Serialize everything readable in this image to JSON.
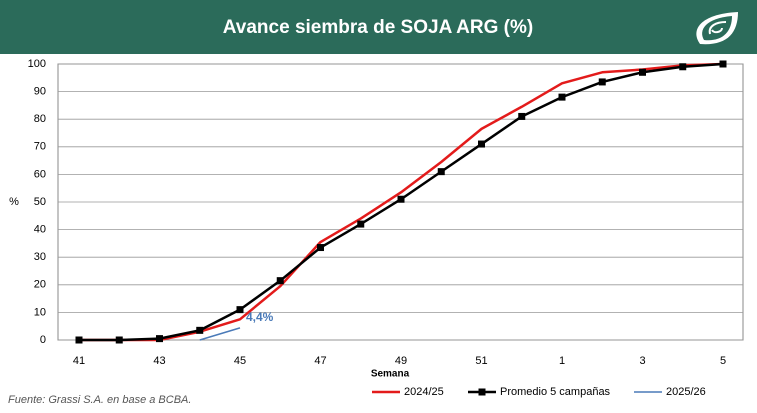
{
  "chart_data": {
    "type": "line",
    "title": "Avance siembra de SOJA ARG (%)",
    "x_label": "Semana",
    "y_label": "%",
    "source": "Fuente: Grassi S.A. en base a BCBA.",
    "categories": [
      "41",
      null,
      "43",
      null,
      "45",
      null,
      "47",
      null,
      "49",
      null,
      "51",
      null,
      "1",
      null,
      "3",
      null,
      "5"
    ],
    "series": [
      {
        "name": "2024/25",
        "color": "#e31b1b",
        "values": [
          0,
          0,
          0,
          3,
          7.5,
          19.5,
          35.5,
          44,
          53.5,
          64.5,
          76.5,
          84.5,
          93,
          97,
          98,
          99.5,
          100
        ]
      },
      {
        "name": "Promedio 5 campañas",
        "color": "#000000",
        "marker": "square",
        "values": [
          0,
          0,
          0.5,
          3.5,
          11,
          21.5,
          33.5,
          42,
          51,
          61,
          71,
          81,
          88,
          93.5,
          97,
          99,
          100
        ]
      },
      {
        "name": "2025/26",
        "color": "#4a7ab8",
        "values": [
          null,
          null,
          null,
          0,
          4.4,
          null,
          null,
          null,
          null,
          null,
          null,
          null,
          null,
          null,
          null,
          null,
          null
        ],
        "value_labels": [
          null,
          null,
          null,
          null,
          "4,4%",
          null,
          null,
          null,
          null,
          null,
          null,
          null,
          null,
          null,
          null,
          null,
          null
        ]
      }
    ],
    "ylim": [
      0,
      100
    ],
    "yticks": [
      0,
      10,
      20,
      30,
      40,
      50,
      60,
      70,
      80,
      90,
      100
    ],
    "grid": true
  }
}
